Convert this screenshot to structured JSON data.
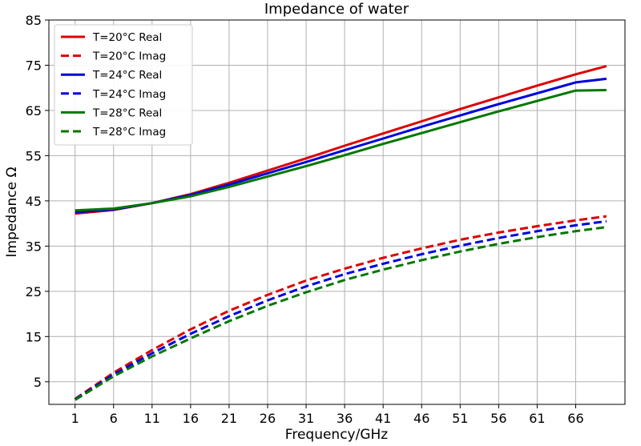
{
  "chart_data": {
    "type": "line",
    "title": "Impedance of water",
    "xlabel": "Frequency/GHz",
    "ylabel": "Impedance Ω",
    "xlim": [
      -2.4,
      72.4
    ],
    "ylim": [
      0,
      85
    ],
    "xticks": [
      1,
      6,
      11,
      16,
      21,
      26,
      31,
      36,
      41,
      46,
      51,
      56,
      61,
      66
    ],
    "yticks": [
      5,
      15,
      25,
      35,
      45,
      55,
      65,
      75,
      85
    ],
    "grid": true,
    "legend_position": "top-left",
    "x": [
      1,
      6,
      11,
      16,
      21,
      26,
      31,
      36,
      41,
      46,
      51,
      56,
      61,
      66,
      70
    ],
    "series": [
      {
        "name": "T=20°C Real",
        "color": "#dd0000",
        "dash": "solid",
        "values": [
          42.2,
          43.0,
          44.5,
          46.5,
          49.0,
          51.7,
          54.4,
          57.2,
          59.9,
          62.6,
          65.3,
          67.9,
          70.5,
          73.0,
          74.8
        ]
      },
      {
        "name": "T=20°C Imag",
        "color": "#dd0000",
        "dash": "dashed",
        "values": [
          1.2,
          7.0,
          12.0,
          16.6,
          20.7,
          24.2,
          27.4,
          30.0,
          32.4,
          34.5,
          36.4,
          38.0,
          39.4,
          40.7,
          41.6
        ]
      },
      {
        "name": "T=24°C Real",
        "color": "#0000dd",
        "dash": "solid",
        "values": [
          42.5,
          43.1,
          44.5,
          46.3,
          48.6,
          51.1,
          53.6,
          56.2,
          58.8,
          61.4,
          63.9,
          66.4,
          68.8,
          71.2,
          72.0
        ]
      },
      {
        "name": "T=24°C Imag",
        "color": "#0000dd",
        "dash": "dashed",
        "values": [
          1.1,
          6.6,
          11.3,
          15.6,
          19.5,
          23.0,
          26.1,
          28.8,
          31.1,
          33.2,
          35.1,
          36.8,
          38.3,
          39.6,
          40.5
        ]
      },
      {
        "name": "T=28°C Real",
        "color": "#007700",
        "dash": "solid",
        "values": [
          42.9,
          43.3,
          44.5,
          46.0,
          48.1,
          50.4,
          52.7,
          55.1,
          57.6,
          60.0,
          62.4,
          64.8,
          67.1,
          69.4,
          69.5
        ]
      },
      {
        "name": "T=28°C Imag",
        "color": "#007700",
        "dash": "dashed",
        "values": [
          1.0,
          6.2,
          10.6,
          14.6,
          18.4,
          21.8,
          24.8,
          27.5,
          29.8,
          31.9,
          33.8,
          35.5,
          37.0,
          38.3,
          39.2
        ]
      }
    ]
  }
}
